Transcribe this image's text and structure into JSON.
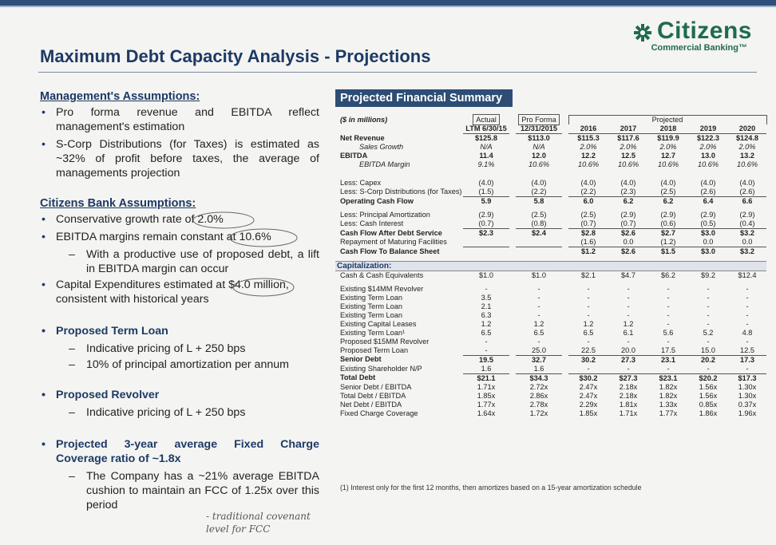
{
  "header": {
    "title": "Maximum Debt Capacity Analysis - Projections",
    "logo_name": "Citizens",
    "logo_sub": "Commercial Banking™"
  },
  "left": {
    "mgmt_title": "Management's Assumptions:",
    "mgmt": [
      "Pro forma revenue and EBITDA reflect management's estimation",
      "S-Corp Distributions (for Taxes) is estimated as ~32% of profit before taxes, the average of managements projection"
    ],
    "bank_title": "Citizens Bank Assumptions:",
    "bank": [
      "Conservative growth rate of 2.0%",
      "EBITDA margins remain constant at 10.6%",
      "Capital Expenditures estimated at $4.0 million, consistent with historical years"
    ],
    "bank_sub": "With a productive use of proposed debt, a lift in EBITDA margin can occur",
    "term_title": "Proposed Term Loan",
    "term": [
      "Indicative pricing of L + 250 bps",
      "10% of principal amortization per annum"
    ],
    "revolver_title": "Proposed Revolver",
    "revolver": [
      "Indicative pricing of L + 250 bps"
    ],
    "fcc_title": "Projected 3-year average Fixed Charge Coverage ratio of ~1.8x",
    "fcc": [
      "The Company has a ~21% average EBITDA cushion to maintain an FCC of 1.25x over this period"
    ],
    "handwriting_1": "- traditional covenant",
    "handwriting_2": "level for FCC"
  },
  "summary": {
    "title": "Projected Financial Summary",
    "units": "($ in millions)",
    "hdr_actual": "Actual",
    "hdr_proforma": "Pro Forma",
    "hdr_projected": "Projected",
    "col_actual": "LTM 6/30/15",
    "col_proforma": "12/31/2015",
    "years": [
      "2016",
      "2017",
      "2018",
      "2019",
      "2020"
    ],
    "rows_a": [
      {
        "label": "Net Revenue",
        "style": "bd",
        "v": [
          "$125.8",
          "$113.0",
          "$115.3",
          "$117.6",
          "$119.9",
          "$122.3",
          "$124.8"
        ]
      },
      {
        "label": "Sales Growth",
        "style": "it ind",
        "v": [
          "N/A",
          "N/A",
          "2.0%",
          "2.0%",
          "2.0%",
          "2.0%",
          "2.0%"
        ]
      },
      {
        "label": "EBITDA",
        "style": "bd",
        "v": [
          "11.4",
          "12.0",
          "12.2",
          "12.5",
          "12.7",
          "13.0",
          "13.2"
        ]
      },
      {
        "label": "EBITDA Margin",
        "style": "it ind",
        "v": [
          "9.1%",
          "10.6%",
          "10.6%",
          "10.6%",
          "10.6%",
          "10.6%",
          "10.6%"
        ]
      }
    ],
    "rows_b": [
      {
        "label": "Less: Capex",
        "style": "",
        "v": [
          "(4.0)",
          "(4.0)",
          "(4.0)",
          "(4.0)",
          "(4.0)",
          "(4.0)",
          "(4.0)"
        ]
      },
      {
        "label": "Less: S-Corp Distributions (for Taxes)",
        "style": "",
        "v": [
          "(1.5)",
          "(2.2)",
          "(2.2)",
          "(2.3)",
          "(2.5)",
          "(2.6)",
          "(2.6)"
        ]
      },
      {
        "label": "Operating Cash Flow",
        "style": "bd",
        "v": [
          "5.9",
          "5.8",
          "6.0",
          "6.2",
          "6.2",
          "6.4",
          "6.6"
        ]
      }
    ],
    "rows_c": [
      {
        "label": "Less: Principal Amortization",
        "style": "",
        "v": [
          "(2.9)",
          "(2.5)",
          "(2.5)",
          "(2.9)",
          "(2.9)",
          "(2.9)",
          "(2.9)"
        ]
      },
      {
        "label": "Less: Cash Interest",
        "style": "",
        "v": [
          "(0.7)",
          "(0.8)",
          "(0.7)",
          "(0.7)",
          "(0.6)",
          "(0.5)",
          "(0.4)"
        ]
      },
      {
        "label": "Cash Flow After Debt Service",
        "style": "bd",
        "v": [
          "$2.3",
          "$2.4",
          "$2.8",
          "$2.6",
          "$2.7",
          "$3.0",
          "$3.2"
        ]
      },
      {
        "label": "Repayment of Maturing Facilities",
        "style": "",
        "v": [
          "",
          "",
          "(1.6)",
          "0.0",
          "(1.2)",
          "0.0",
          "0.0"
        ]
      },
      {
        "label": "Cash Flow To Balance Sheet",
        "style": "bd",
        "v": [
          "",
          "",
          "$1.2",
          "$2.6",
          "$1.5",
          "$3.0",
          "$3.2"
        ]
      }
    ],
    "cap_title": "Capitalization:",
    "cash_row": {
      "label": "Cash & Cash Equivalents",
      "style": "",
      "v": [
        "$1.0",
        "$1.0",
        "$2.1",
        "$4.7",
        "$6.2",
        "$9.2",
        "$12.4"
      ]
    },
    "rows_d": [
      {
        "label": "Existing $14MM Revolver",
        "style": "",
        "v": [
          "-",
          "-",
          "-",
          "-",
          "-",
          "-",
          "-"
        ]
      },
      {
        "label": "Existing Term Loan",
        "style": "",
        "v": [
          "3.5",
          "-",
          "-",
          "-",
          "-",
          "-",
          "-"
        ]
      },
      {
        "label": "Existing Term Loan",
        "style": "",
        "v": [
          "2.1",
          "-",
          "-",
          "-",
          "-",
          "-",
          "-"
        ]
      },
      {
        "label": "Existing Term Loan",
        "style": "",
        "v": [
          "6.3",
          "-",
          "-",
          "-",
          "-",
          "-",
          "-"
        ]
      },
      {
        "label": "Existing Capital Leases",
        "style": "",
        "v": [
          "1.2",
          "1.2",
          "1.2",
          "1.2",
          "-",
          "-",
          "-"
        ]
      },
      {
        "label": "Existing Term Loan¹",
        "style": "",
        "v": [
          "6.5",
          "6.5",
          "6.5",
          "6.1",
          "5.6",
          "5.2",
          "4.8"
        ]
      },
      {
        "label": "Proposed $15MM Revolver",
        "style": "",
        "v": [
          "-",
          "-",
          "-",
          "-",
          "-",
          "-",
          "-"
        ]
      },
      {
        "label": "Proposed Term Loan",
        "style": "",
        "v": [
          "-",
          "25.0",
          "22.5",
          "20.0",
          "17.5",
          "15.0",
          "12.5"
        ]
      },
      {
        "label": "Senior Debt",
        "style": "bd",
        "v": [
          "19.5",
          "32.7",
          "30.2",
          "27.3",
          "23.1",
          "20.2",
          "17.3"
        ]
      },
      {
        "label": "Existing Shareholder N/P",
        "style": "",
        "v": [
          "1.6",
          "1.6",
          "-",
          "-",
          "-",
          "-",
          "-"
        ]
      },
      {
        "label": "Total Debt",
        "style": "bd",
        "v": [
          "$21.1",
          "$34.3",
          "$30.2",
          "$27.3",
          "$23.1",
          "$20.2",
          "$17.3"
        ]
      },
      {
        "label": "Senior Debt / EBITDA",
        "style": "",
        "v": [
          "1.71x",
          "2.72x",
          "2.47x",
          "2.18x",
          "1.82x",
          "1.56x",
          "1.30x"
        ]
      },
      {
        "label": "Total Debt / EBITDA",
        "style": "",
        "v": [
          "1.85x",
          "2.86x",
          "2.47x",
          "2.18x",
          "1.82x",
          "1.56x",
          "1.30x"
        ]
      },
      {
        "label": "Net Debt / EBITDA",
        "style": "",
        "v": [
          "1.77x",
          "2.78x",
          "2.29x",
          "1.81x",
          "1.33x",
          "0.85x",
          "0.37x"
        ]
      },
      {
        "label": "Fixed Charge Coverage",
        "style": "",
        "v": [
          "1.64x",
          "1.72x",
          "1.85x",
          "1.71x",
          "1.77x",
          "1.86x",
          "1.96x"
        ]
      }
    ],
    "footnote": "(1)    Interest only for the first 12 months, then amortizes based on a 15-year amortization schedule"
  }
}
